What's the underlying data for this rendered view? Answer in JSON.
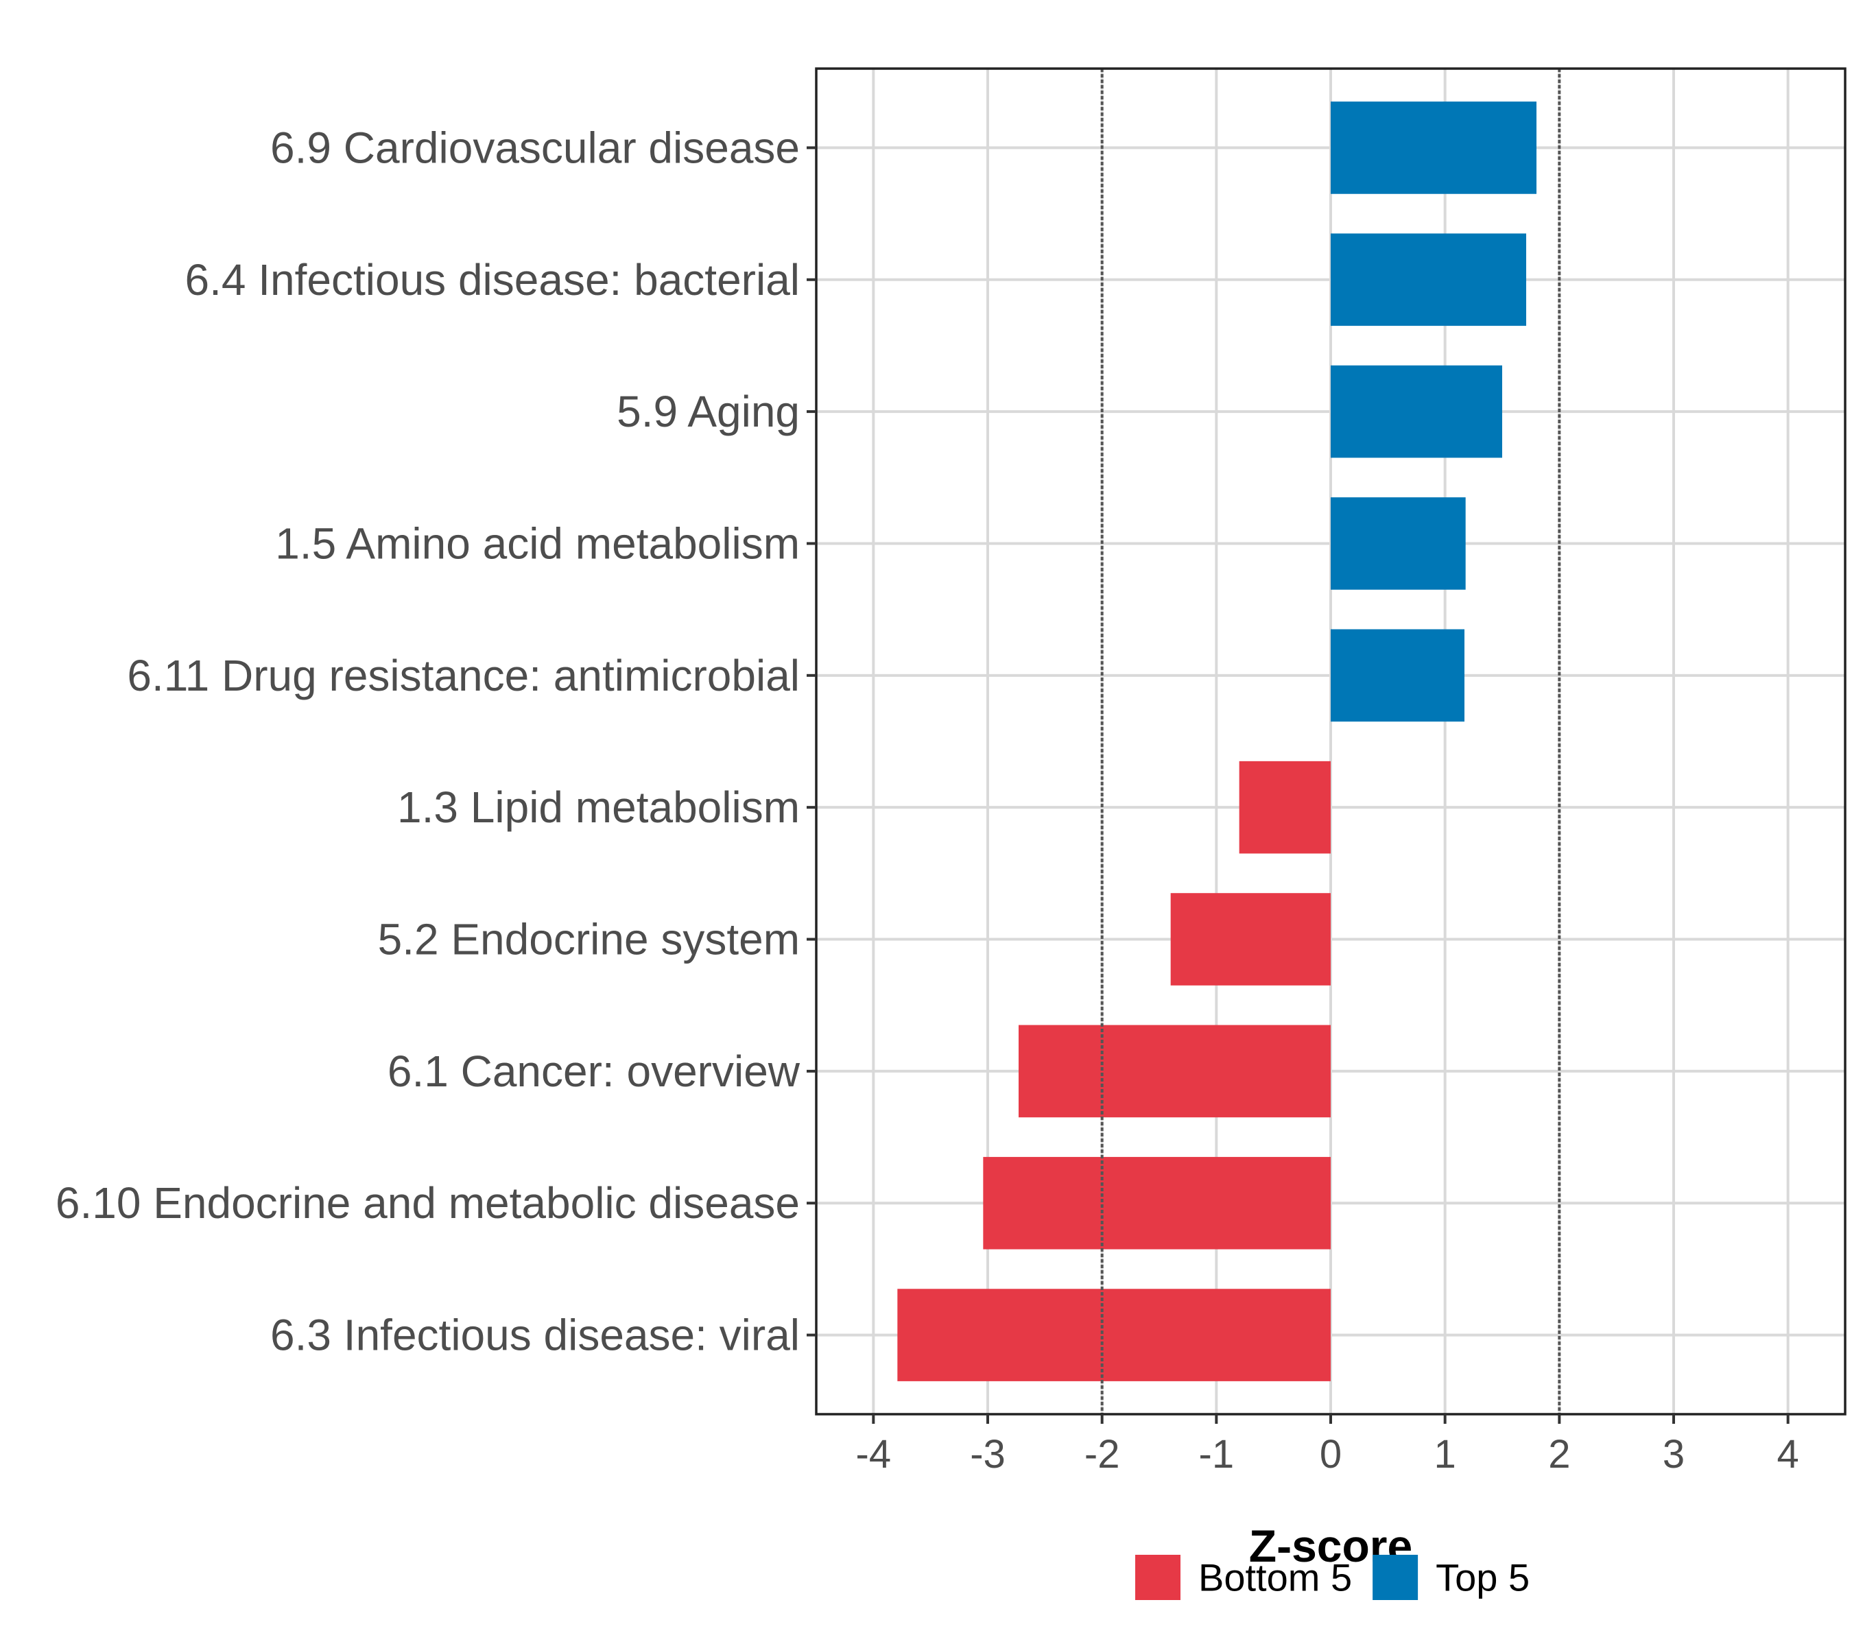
{
  "chart_data": {
    "type": "bar",
    "orientation": "horizontal",
    "title": "",
    "xlabel": "Z-score",
    "ylabel": "",
    "xlim": [
      -4.5,
      4.5
    ],
    "x_ticks": [
      -4,
      -3,
      -2,
      -1,
      0,
      1,
      2,
      3,
      4
    ],
    "reference_lines": [
      -2,
      2
    ],
    "grid": true,
    "legend_position": "bottom",
    "categories": [
      "6.9 Cardiovascular disease",
      "6.4 Infectious disease: bacterial",
      "5.9 Aging",
      "1.5 Amino acid metabolism",
      "6.11 Drug resistance: antimicrobial",
      "1.3 Lipid metabolism",
      "5.2 Endocrine system",
      "6.1 Cancer: overview",
      "6.10 Endocrine and metabolic disease",
      "6.3 Infectious disease: viral"
    ],
    "values": [
      1.8,
      1.71,
      1.5,
      1.18,
      1.17,
      -0.8,
      -1.4,
      -2.73,
      -3.04,
      -3.79
    ],
    "groups": [
      "Top 5",
      "Top 5",
      "Top 5",
      "Top 5",
      "Top 5",
      "Bottom 5",
      "Bottom 5",
      "Bottom 5",
      "Bottom 5",
      "Bottom 5"
    ],
    "legend": [
      {
        "name": "Bottom 5",
        "color": "#e63946"
      },
      {
        "name": "Top 5",
        "color": "#0077b6"
      }
    ]
  }
}
